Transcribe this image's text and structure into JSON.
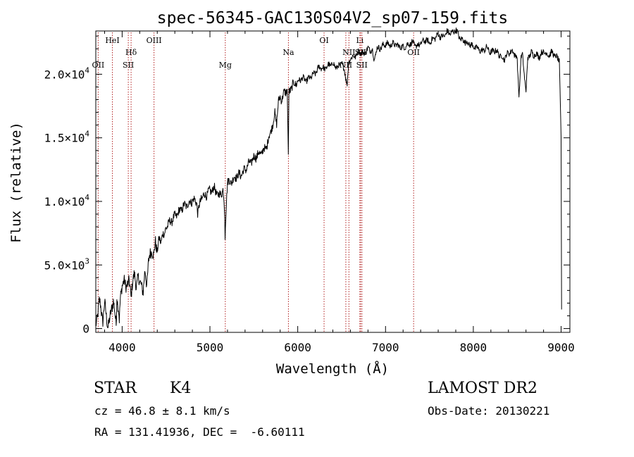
{
  "chart_data": {
    "type": "line",
    "title": "spec-56345-GAC130S04V2_sp07-159.fits",
    "xlabel": "Wavelength (Å)",
    "ylabel": "Flux (relative)",
    "xlim": [
      3700,
      9100
    ],
    "ylim": [
      -300,
      23400
    ],
    "grid": false,
    "x_ticks": [
      {
        "value": 4000,
        "label": "4000"
      },
      {
        "value": 5000,
        "label": "5000"
      },
      {
        "value": 6000,
        "label": "6000"
      },
      {
        "value": 7000,
        "label": "7000"
      },
      {
        "value": 8000,
        "label": "8000"
      },
      {
        "value": 9000,
        "label": "9000"
      }
    ],
    "y_ticks": [
      {
        "value": 0,
        "mantissa": "0",
        "exp": ""
      },
      {
        "value": 5000,
        "mantissa": "5.0×10",
        "exp": "3"
      },
      {
        "value": 10000,
        "mantissa": "1.0×10",
        "exp": "4"
      },
      {
        "value": 15000,
        "mantissa": "1.5×10",
        "exp": "4"
      },
      {
        "value": 20000,
        "mantissa": "2.0×10",
        "exp": "4"
      }
    ],
    "spectral_lines": [
      {
        "label": "OII",
        "wavelength": 3727,
        "row": 3
      },
      {
        "label": "HeI",
        "wavelength": 3889,
        "row": 0
      },
      {
        "label": "SII",
        "wavelength": 4070,
        "row": 3
      },
      {
        "label": "Hδ",
        "wavelength": 4102,
        "row": 2
      },
      {
        "label": "OIII",
        "wavelength": 4363,
        "row": 0
      },
      {
        "label": "Mg",
        "wavelength": 5175,
        "row": 3
      },
      {
        "label": "Na",
        "wavelength": 5894,
        "row": 2
      },
      {
        "label": "OI",
        "wavelength": 6300,
        "row": 0
      },
      {
        "label": "NII",
        "wavelength": 6548,
        "row": 3
      },
      {
        "label": "NII",
        "wavelength": 6583,
        "row": 2
      },
      {
        "label": "Li",
        "wavelength": 6708,
        "row": 0
      },
      {
        "label": "SII",
        "wavelength": 6716,
        "row": 2
      },
      {
        "label": "SII",
        "wavelength": 6731,
        "row": 3
      },
      {
        "label": "OII",
        "wavelength": 7320,
        "row": 2
      }
    ],
    "series": [
      {
        "color": "#000000",
        "x": [
          3700,
          3720,
          3740,
          3760,
          3780,
          3800,
          3820,
          3840,
          3860,
          3880,
          3900,
          3920,
          3933,
          3940,
          3960,
          3968,
          3980,
          4000,
          4020,
          4040,
          4060,
          4080,
          4100,
          4120,
          4140,
          4160,
          4180,
          4200,
          4220,
          4240,
          4260,
          4280,
          4300,
          4320,
          4340,
          4360,
          4380,
          4400,
          4420,
          4440,
          4460,
          4480,
          4500,
          4550,
          4600,
          4650,
          4700,
          4750,
          4800,
          4850,
          4861,
          4900,
          4950,
          5000,
          5050,
          5100,
          5150,
          5167,
          5172,
          5183,
          5200,
          5250,
          5300,
          5350,
          5400,
          5450,
          5500,
          5550,
          5600,
          5650,
          5700,
          5720,
          5740,
          5760,
          5780,
          5800,
          5820,
          5850,
          5880,
          5893,
          5900,
          5920,
          5950,
          6000,
          6050,
          6100,
          6150,
          6200,
          6250,
          6300,
          6350,
          6400,
          6450,
          6500,
          6540,
          6563,
          6580,
          6600,
          6650,
          6700,
          6750,
          6800,
          6850,
          6870,
          6900,
          6950,
          7000,
          7050,
          7100,
          7150,
          7200,
          7250,
          7300,
          7350,
          7400,
          7450,
          7500,
          7550,
          7600,
          7650,
          7700,
          7750,
          7800,
          7850,
          7900,
          7950,
          8000,
          8050,
          8100,
          8150,
          8200,
          8250,
          8300,
          8350,
          8400,
          8450,
          8498,
          8520,
          8542,
          8560,
          8600,
          8620,
          8662,
          8680,
          8700,
          8750,
          8800,
          8850,
          8900,
          8950,
          8980,
          9000,
          9005
        ],
        "y": [
          200,
          1200,
          2100,
          1500,
          700,
          1900,
          1000,
          200,
          600,
          1700,
          2200,
          900,
          300,
          2700,
          1400,
          500,
          2300,
          3600,
          3700,
          3200,
          3700,
          3600,
          2500,
          3900,
          4100,
          3300,
          4200,
          3400,
          3600,
          2900,
          4400,
          3600,
          5200,
          5800,
          6300,
          5600,
          6800,
          6200,
          7000,
          6700,
          7600,
          7200,
          8000,
          8400,
          8800,
          9200,
          9600,
          9800,
          10100,
          10000,
          9000,
          10300,
          10500,
          10800,
          11000,
          10400,
          10900,
          9200,
          7000,
          9500,
          11500,
          11600,
          12000,
          12100,
          12500,
          13000,
          13400,
          13700,
          13900,
          14400,
          15800,
          16000,
          17000,
          16200,
          17700,
          18300,
          18000,
          18600,
          18800,
          13700,
          18500,
          18900,
          19200,
          19400,
          19700,
          19500,
          19800,
          20100,
          20600,
          20400,
          20700,
          20800,
          20500,
          20900,
          20100,
          19100,
          20800,
          21300,
          21400,
          21800,
          21600,
          22000,
          21900,
          21100,
          22000,
          22100,
          22400,
          22300,
          22400,
          22200,
          22100,
          22300,
          22500,
          22200,
          22400,
          22700,
          22500,
          22800,
          23100,
          22900,
          23300,
          23200,
          23500,
          22800,
          22600,
          22400,
          22200,
          22000,
          21800,
          22100,
          21700,
          21900,
          21500,
          21200,
          21700,
          21800,
          21300,
          18200,
          21200,
          21500,
          18600,
          21300,
          21700,
          21500,
          21600,
          21400,
          21800,
          21500,
          21700,
          21300,
          21100,
          15000,
          1500
        ]
      }
    ],
    "footer": {
      "class_label": "STAR",
      "subclass_label": "K4",
      "survey": "LAMOST DR2",
      "cz": "cz = 46.8 ± 8.1 km/s",
      "obs_date": "Obs-Date: 20130221",
      "radec": "RA = 131.41936, DEC =  -6.60111"
    }
  }
}
